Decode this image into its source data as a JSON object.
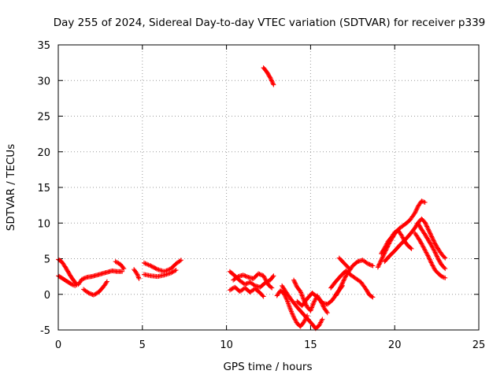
{
  "chart_data": {
    "type": "scatter",
    "title": "Day 255 of 2024, Sidereal Day-to-day VTEC variation (SDTVAR) for receiver p339",
    "xlabel": "GPS time / hours",
    "ylabel": "SDTVAR / TECUs",
    "xlim": [
      0,
      25
    ],
    "ylim": [
      -5,
      35
    ],
    "xticks": [
      "0",
      "5",
      "10",
      "15",
      "20",
      "25"
    ],
    "yticks": [
      "-5",
      "0",
      "5",
      "10",
      "15",
      "20",
      "25",
      "30",
      "35"
    ],
    "grid": true,
    "marker": "plus",
    "series_color": "#ff0000",
    "tracks": [
      {
        "name": "segment-a",
        "points": [
          [
            0.0,
            4.9
          ],
          [
            0.2,
            4.6
          ],
          [
            0.4,
            3.9
          ],
          [
            0.6,
            3.1
          ],
          [
            0.8,
            2.3
          ],
          [
            1.0,
            1.7
          ],
          [
            1.1,
            1.3
          ]
        ]
      },
      {
        "name": "segment-b",
        "points": [
          [
            0.0,
            2.6
          ],
          [
            0.2,
            2.3
          ],
          [
            0.4,
            2.0
          ],
          [
            0.6,
            1.7
          ],
          [
            0.8,
            1.4
          ],
          [
            1.0,
            1.2
          ]
        ]
      },
      {
        "name": "segment-c",
        "points": [
          [
            1.2,
            1.4
          ],
          [
            1.4,
            2.1
          ],
          [
            1.7,
            2.4
          ],
          [
            2.0,
            2.5
          ],
          [
            2.3,
            2.7
          ],
          [
            2.6,
            2.9
          ],
          [
            2.9,
            3.1
          ],
          [
            3.2,
            3.3
          ],
          [
            3.5,
            3.2
          ],
          [
            3.8,
            3.2
          ]
        ]
      },
      {
        "name": "segment-d",
        "points": [
          [
            1.5,
            0.7
          ],
          [
            1.8,
            0.2
          ],
          [
            2.1,
            -0.1
          ],
          [
            2.4,
            0.3
          ],
          [
            2.7,
            1.1
          ],
          [
            2.9,
            1.8
          ]
        ]
      },
      {
        "name": "segment-e",
        "points": [
          [
            3.4,
            4.6
          ],
          [
            3.7,
            4.2
          ],
          [
            3.9,
            3.6
          ]
        ]
      },
      {
        "name": "segment-f",
        "points": [
          [
            4.5,
            3.5
          ],
          [
            4.7,
            2.8
          ],
          [
            4.8,
            2.2
          ]
        ]
      },
      {
        "name": "segment-g",
        "points": [
          [
            5.1,
            4.4
          ],
          [
            5.5,
            4.0
          ],
          [
            5.9,
            3.5
          ],
          [
            6.3,
            3.2
          ],
          [
            6.7,
            3.6
          ],
          [
            7.0,
            4.3
          ],
          [
            7.3,
            4.8
          ]
        ]
      },
      {
        "name": "segment-h",
        "points": [
          [
            5.1,
            2.8
          ],
          [
            5.5,
            2.6
          ],
          [
            5.9,
            2.5
          ],
          [
            6.3,
            2.7
          ],
          [
            6.7,
            3.0
          ],
          [
            7.0,
            3.4
          ]
        ]
      },
      {
        "name": "segment-i",
        "points": [
          [
            10.2,
            3.2
          ],
          [
            10.5,
            2.6
          ],
          [
            10.8,
            1.9
          ],
          [
            11.1,
            1.4
          ],
          [
            11.4,
            1.7
          ],
          [
            11.7,
            1.2
          ],
          [
            12.0,
            1.0
          ],
          [
            12.3,
            1.6
          ],
          [
            12.6,
            2.0
          ],
          [
            12.8,
            2.6
          ]
        ]
      },
      {
        "name": "segment-j",
        "points": [
          [
            10.2,
            0.6
          ],
          [
            10.5,
            1.0
          ],
          [
            10.8,
            0.4
          ],
          [
            11.1,
            0.9
          ],
          [
            11.4,
            0.3
          ],
          [
            11.7,
            0.8
          ],
          [
            12.0,
            0.2
          ],
          [
            12.2,
            -0.3
          ]
        ]
      },
      {
        "name": "segment-k",
        "points": [
          [
            10.4,
            2.0
          ],
          [
            10.7,
            2.5
          ],
          [
            11.0,
            2.7
          ],
          [
            11.3,
            2.4
          ],
          [
            11.6,
            2.2
          ],
          [
            11.9,
            2.9
          ],
          [
            12.2,
            2.6
          ],
          [
            12.5,
            1.3
          ],
          [
            12.7,
            0.9
          ]
        ]
      },
      {
        "name": "segment-l",
        "points": [
          [
            12.2,
            31.8
          ],
          [
            12.4,
            31.2
          ],
          [
            12.6,
            30.4
          ],
          [
            12.8,
            29.4
          ]
        ]
      },
      {
        "name": "segment-m",
        "points": [
          [
            13.0,
            -0.2
          ],
          [
            13.2,
            0.5
          ],
          [
            13.4,
            0.2
          ],
          [
            13.6,
            -0.8
          ],
          [
            13.8,
            -2.1
          ],
          [
            14.0,
            -3.2
          ],
          [
            14.2,
            -4.1
          ],
          [
            14.4,
            -4.5
          ],
          [
            14.6,
            -3.9
          ],
          [
            14.8,
            -3.0
          ]
        ]
      },
      {
        "name": "segment-n",
        "points": [
          [
            13.3,
            1.2
          ],
          [
            13.6,
            0.1
          ],
          [
            13.9,
            -0.9
          ],
          [
            14.2,
            -1.8
          ],
          [
            14.5,
            -2.6
          ],
          [
            14.8,
            -3.4
          ],
          [
            15.1,
            -4.2
          ],
          [
            15.3,
            -4.8
          ],
          [
            15.5,
            -4.4
          ],
          [
            15.7,
            -3.5
          ]
        ]
      },
      {
        "name": "segment-o",
        "points": [
          [
            14.0,
            2.0
          ],
          [
            14.2,
            1.0
          ],
          [
            14.4,
            0.4
          ],
          [
            14.6,
            -0.8
          ],
          [
            14.8,
            -1.8
          ],
          [
            15.0,
            -2.3
          ],
          [
            15.2,
            -1.1
          ],
          [
            15.4,
            -0.2
          ],
          [
            15.6,
            -0.9
          ],
          [
            15.8,
            -1.9
          ],
          [
            16.0,
            -2.6
          ]
        ]
      },
      {
        "name": "segment-p",
        "points": [
          [
            14.2,
            -1.0
          ],
          [
            14.5,
            -1.6
          ],
          [
            14.8,
            -0.6
          ],
          [
            15.1,
            0.2
          ],
          [
            15.4,
            -0.4
          ],
          [
            15.7,
            -1.2
          ],
          [
            16.0,
            -1.4
          ],
          [
            16.3,
            -0.8
          ],
          [
            16.6,
            0.3
          ],
          [
            16.9,
            1.2
          ]
        ]
      },
      {
        "name": "segment-q",
        "points": [
          [
            16.5,
            -0.2
          ],
          [
            16.7,
            0.6
          ],
          [
            16.9,
            1.6
          ],
          [
            17.1,
            2.6
          ],
          [
            17.3,
            3.3
          ],
          [
            17.5,
            4.0
          ],
          [
            17.8,
            4.6
          ],
          [
            18.1,
            4.8
          ],
          [
            18.4,
            4.3
          ],
          [
            18.7,
            4.0
          ]
        ]
      },
      {
        "name": "segment-r",
        "points": [
          [
            16.2,
            0.9
          ],
          [
            16.5,
            1.8
          ],
          [
            16.8,
            2.6
          ],
          [
            17.1,
            3.3
          ],
          [
            17.4,
            2.7
          ],
          [
            17.7,
            2.2
          ],
          [
            18.0,
            1.7
          ],
          [
            18.3,
            0.7
          ],
          [
            18.5,
            -0.1
          ],
          [
            18.7,
            -0.4
          ]
        ]
      },
      {
        "name": "segment-s",
        "points": [
          [
            16.7,
            5.1
          ],
          [
            16.9,
            4.6
          ],
          [
            17.1,
            4.1
          ],
          [
            17.3,
            3.6
          ]
        ]
      },
      {
        "name": "segment-t",
        "points": [
          [
            19.0,
            3.8
          ],
          [
            19.2,
            4.8
          ],
          [
            19.4,
            5.8
          ],
          [
            19.6,
            6.8
          ],
          [
            19.8,
            7.7
          ],
          [
            20.0,
            8.5
          ],
          [
            20.3,
            9.3
          ],
          [
            20.6,
            9.8
          ],
          [
            20.9,
            10.4
          ],
          [
            21.2,
            11.4
          ],
          [
            21.4,
            12.4
          ],
          [
            21.6,
            13.1
          ],
          [
            21.8,
            12.9
          ]
        ]
      },
      {
        "name": "segment-u",
        "points": [
          [
            19.2,
            5.7
          ],
          [
            19.4,
            6.5
          ],
          [
            19.6,
            7.4
          ],
          [
            19.8,
            8.0
          ],
          [
            20.0,
            8.7
          ],
          [
            20.2,
            9.0
          ],
          [
            20.4,
            8.3
          ],
          [
            20.6,
            7.4
          ],
          [
            20.8,
            6.8
          ],
          [
            21.0,
            6.4
          ]
        ]
      },
      {
        "name": "segment-v",
        "points": [
          [
            19.4,
            4.6
          ],
          [
            19.7,
            5.4
          ],
          [
            20.0,
            6.1
          ],
          [
            20.3,
            6.9
          ],
          [
            20.6,
            7.6
          ],
          [
            20.9,
            8.4
          ],
          [
            21.2,
            9.3
          ],
          [
            21.4,
            10.1
          ],
          [
            21.6,
            10.6
          ],
          [
            21.8,
            10.1
          ],
          [
            22.0,
            9.1
          ],
          [
            22.2,
            8.1
          ],
          [
            22.4,
            7.1
          ],
          [
            22.6,
            6.3
          ],
          [
            22.8,
            5.6
          ],
          [
            23.0,
            5.1
          ]
        ]
      },
      {
        "name": "segment-w",
        "points": [
          [
            21.4,
            9.9
          ],
          [
            21.6,
            9.1
          ],
          [
            21.8,
            8.4
          ],
          [
            22.0,
            7.6
          ],
          [
            22.2,
            6.8
          ],
          [
            22.4,
            5.9
          ],
          [
            22.6,
            4.9
          ],
          [
            22.8,
            4.1
          ],
          [
            23.0,
            3.6
          ]
        ]
      },
      {
        "name": "segment-x",
        "points": [
          [
            21.2,
            8.6
          ],
          [
            21.4,
            7.9
          ],
          [
            21.6,
            7.1
          ],
          [
            21.8,
            6.2
          ],
          [
            22.0,
            5.3
          ],
          [
            22.2,
            4.3
          ],
          [
            22.4,
            3.4
          ],
          [
            22.6,
            2.9
          ],
          [
            22.8,
            2.5
          ],
          [
            23.0,
            2.3
          ]
        ]
      }
    ]
  }
}
